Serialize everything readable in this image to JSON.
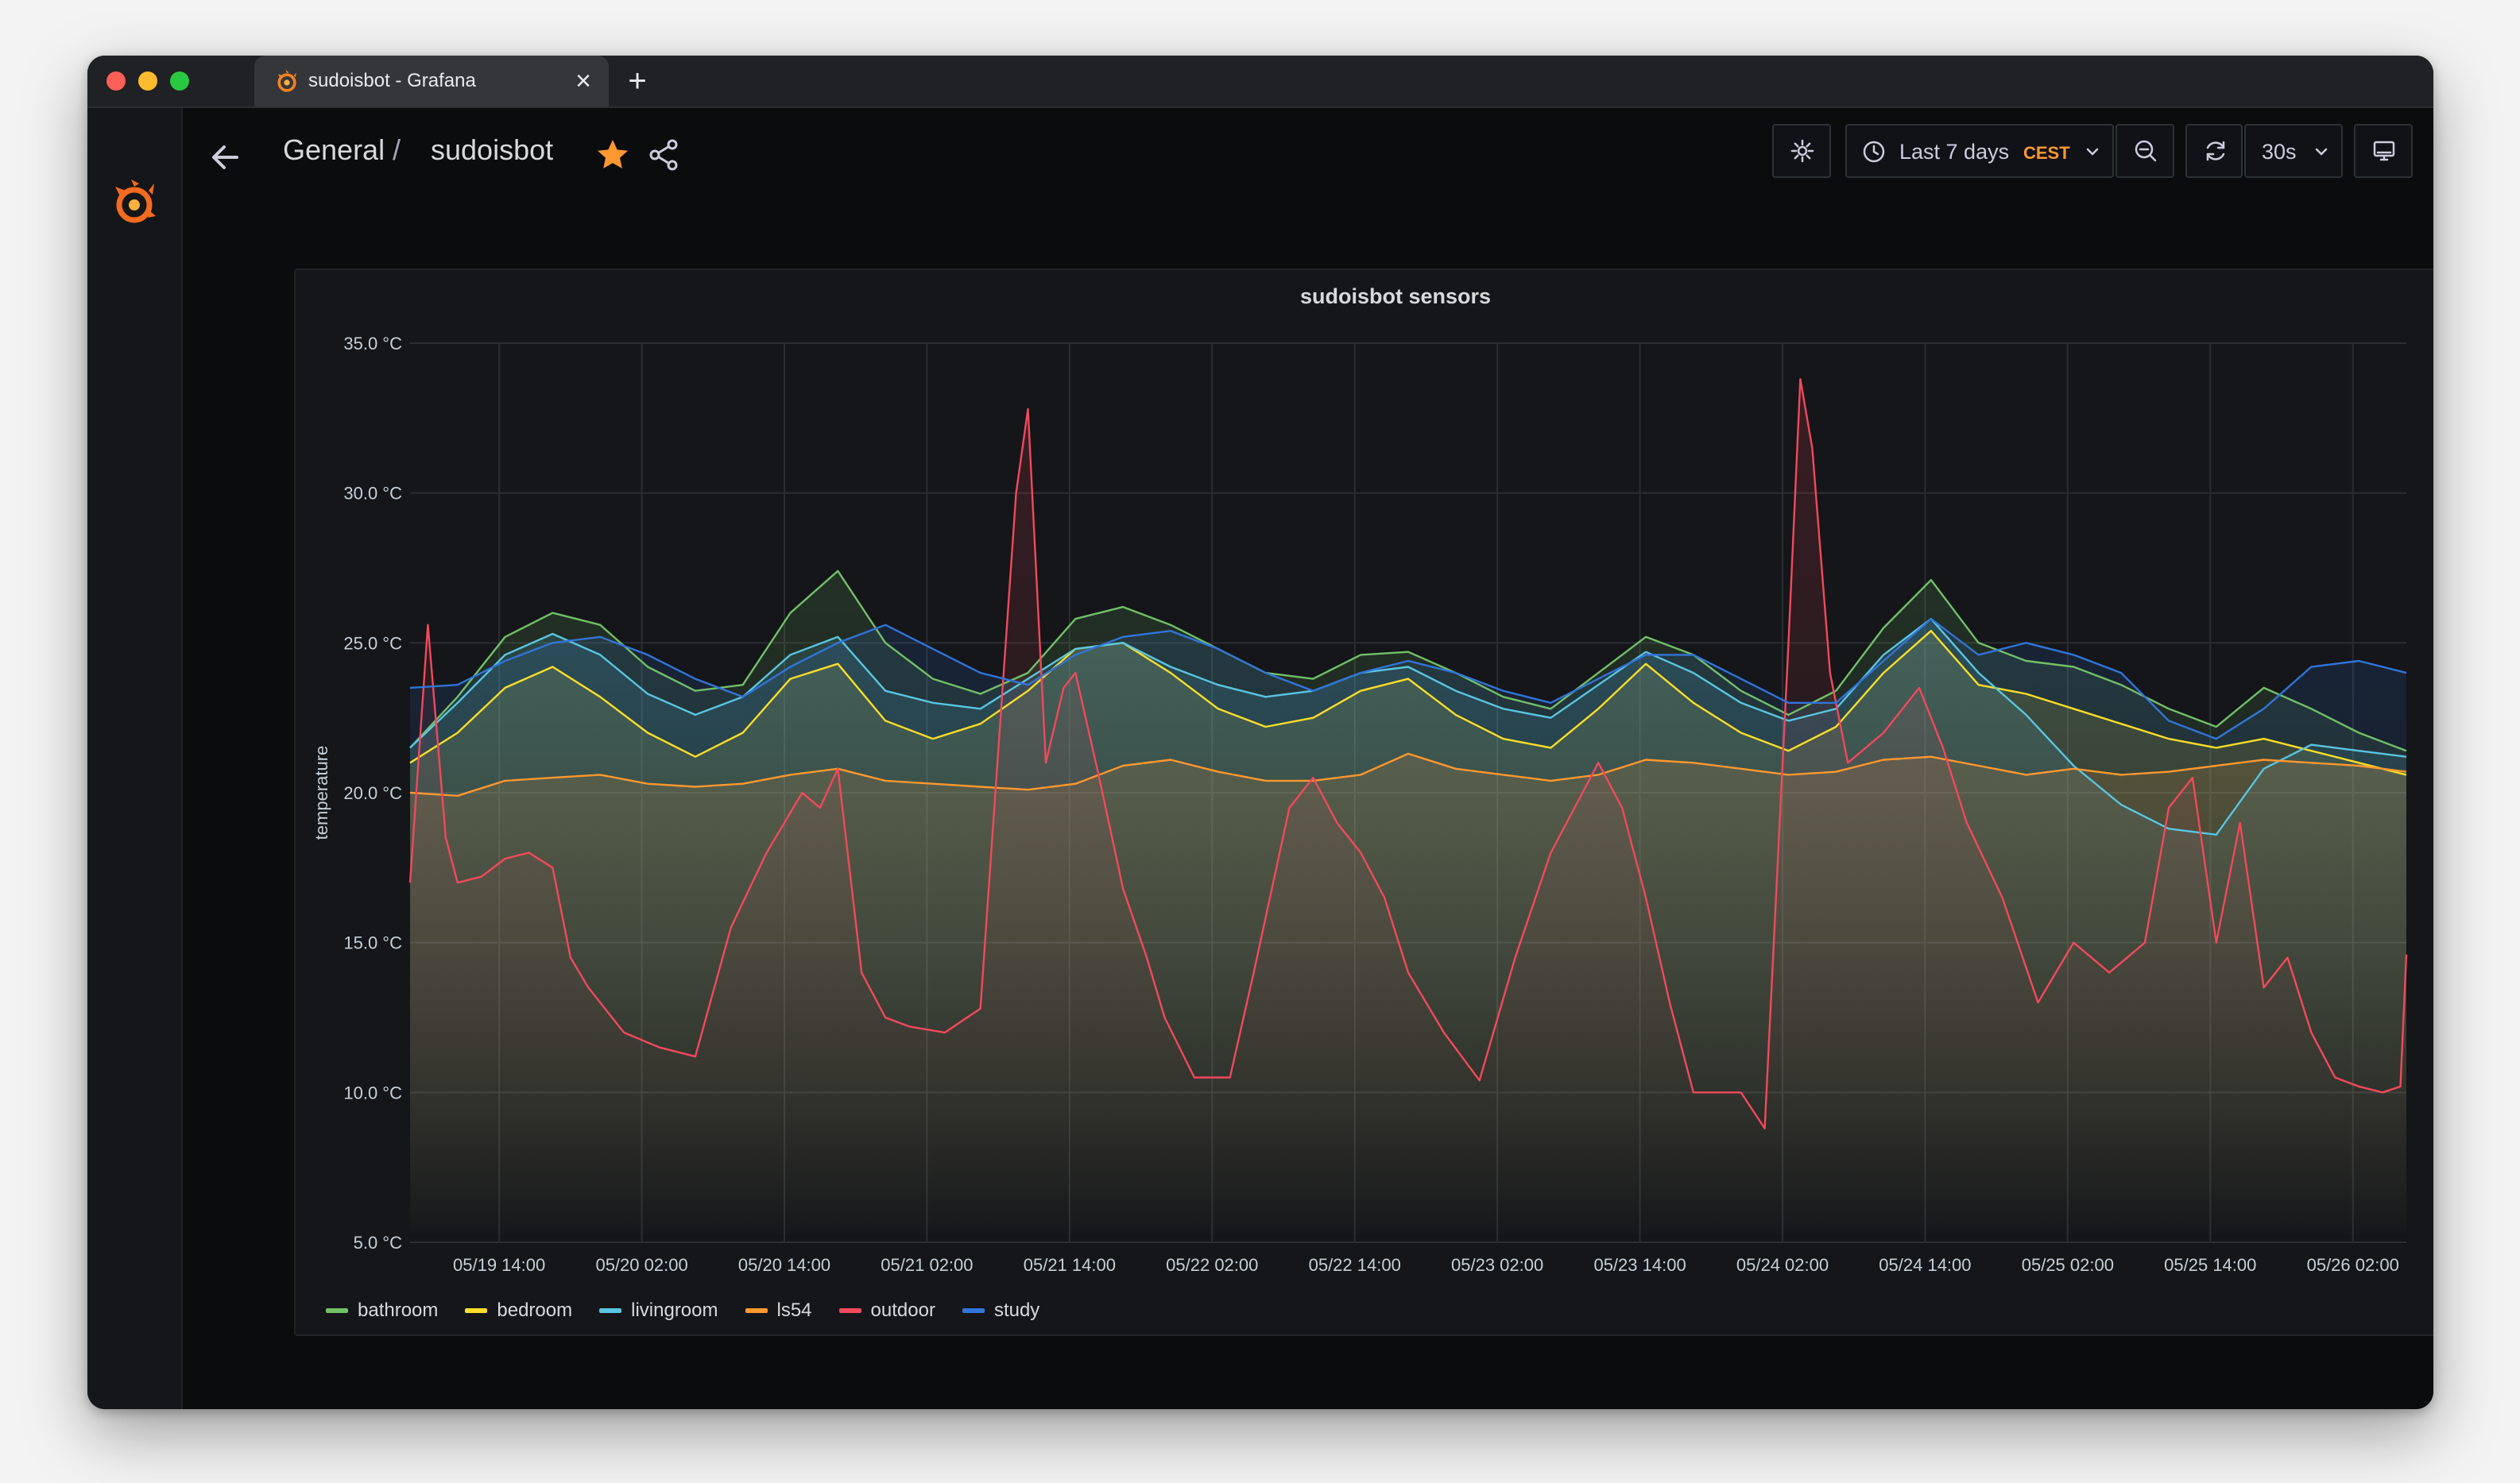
{
  "browser": {
    "tab_title": "sudoisbot - Grafana",
    "close_glyph": "×",
    "new_tab_glyph": "+"
  },
  "header": {
    "folder": "General",
    "separator": "/",
    "dashboard_title": "sudoisbot",
    "icons": [
      "arrow-left-icon",
      "star-icon",
      "share-icon"
    ]
  },
  "toolbar": {
    "time_range": "Last 7 days",
    "timezone": "CEST",
    "refresh_interval": "30s",
    "icons": [
      "cog-icon",
      "clock-icon",
      "zoom-out-icon",
      "sync-icon",
      "monitor-icon"
    ],
    "accent_color": "#ff9830"
  },
  "panel": {
    "title": "sudoisbot sensors"
  },
  "chart_data": {
    "type": "line",
    "title": "sudoisbot sensors",
    "ylabel": "temperature",
    "xlabel": "",
    "unit": "°C",
    "ylim": [
      5,
      35
    ],
    "xlim": [
      "05/19 06:30",
      "05/26 06:30"
    ],
    "grid": true,
    "legend_position": "bottom-left",
    "y_ticks": [
      "5.0 °C",
      "10.0 °C",
      "15.0 °C",
      "20.0 °C",
      "25.0 °C",
      "30.0 °C",
      "35.0 °C"
    ],
    "x_ticks": [
      {
        "label": "05/19 14:00",
        "h": 7.5
      },
      {
        "label": "05/20 02:00",
        "h": 19.5
      },
      {
        "label": "05/20 14:00",
        "h": 31.5
      },
      {
        "label": "05/21 02:00",
        "h": 43.5
      },
      {
        "label": "05/21 14:00",
        "h": 55.5
      },
      {
        "label": "05/22 02:00",
        "h": 67.5
      },
      {
        "label": "05/22 14:00",
        "h": 79.5
      },
      {
        "label": "05/23 02:00",
        "h": 91.5
      },
      {
        "label": "05/23 14:00",
        "h": 103.5
      },
      {
        "label": "05/24 02:00",
        "h": 115.5
      },
      {
        "label": "05/24 14:00",
        "h": 127.5
      },
      {
        "label": "05/25 02:00",
        "h": 139.5
      },
      {
        "label": "05/25 14:00",
        "h": 151.5
      },
      {
        "label": "05/26 02:00",
        "h": 163.5
      }
    ],
    "series": [
      {
        "name": "bathroom",
        "color": "#73bf69",
        "x": [
          0,
          4,
          8,
          12,
          16,
          20,
          24,
          28,
          32,
          36,
          40,
          44,
          48,
          52,
          56,
          60,
          64,
          68,
          72,
          76,
          80,
          84,
          88,
          92,
          96,
          100,
          104,
          108,
          112,
          116,
          120,
          124,
          128,
          132,
          136,
          140,
          144,
          148,
          152,
          156,
          160,
          164,
          168
        ],
        "y": [
          21.5,
          23.2,
          25.2,
          26.0,
          25.6,
          24.2,
          23.4,
          23.6,
          26.0,
          27.4,
          25.0,
          23.8,
          23.3,
          24.0,
          25.8,
          26.2,
          25.6,
          24.8,
          24.0,
          23.8,
          24.6,
          24.7,
          24.0,
          23.2,
          22.8,
          24.0,
          25.2,
          24.6,
          23.4,
          22.6,
          23.4,
          25.5,
          27.1,
          25.0,
          24.4,
          24.2,
          23.6,
          22.8,
          22.2,
          23.5,
          22.8,
          22.0,
          21.4
        ]
      },
      {
        "name": "bedroom",
        "color": "#fade2a",
        "x": [
          0,
          4,
          8,
          12,
          16,
          20,
          24,
          28,
          32,
          36,
          40,
          44,
          48,
          52,
          56,
          60,
          64,
          68,
          72,
          76,
          80,
          84,
          88,
          92,
          96,
          100,
          104,
          108,
          112,
          116,
          120,
          124,
          128,
          132,
          136,
          140,
          144,
          148,
          152,
          156,
          160,
          164,
          168
        ],
        "y": [
          21.0,
          22.0,
          23.5,
          24.2,
          23.2,
          22.0,
          21.2,
          22.0,
          23.8,
          24.3,
          22.4,
          21.8,
          22.3,
          23.4,
          24.8,
          25.0,
          24.0,
          22.8,
          22.2,
          22.5,
          23.4,
          23.8,
          22.6,
          21.8,
          21.5,
          22.8,
          24.3,
          23.0,
          22.0,
          21.4,
          22.2,
          24.0,
          25.4,
          23.6,
          23.3,
          22.8,
          22.3,
          21.8,
          21.5,
          21.8,
          21.4,
          21.0,
          20.6
        ]
      },
      {
        "name": "livingroom",
        "color": "#5ac5e0",
        "x": [
          0,
          4,
          8,
          12,
          16,
          20,
          24,
          28,
          32,
          36,
          40,
          44,
          48,
          52,
          56,
          60,
          64,
          68,
          72,
          76,
          80,
          84,
          88,
          92,
          96,
          100,
          104,
          108,
          112,
          116,
          120,
          124,
          128,
          132,
          136,
          140,
          144,
          148,
          152,
          156,
          160,
          164,
          168
        ],
        "y": [
          21.5,
          23.0,
          24.6,
          25.3,
          24.6,
          23.3,
          22.6,
          23.2,
          24.6,
          25.2,
          23.4,
          23.0,
          22.8,
          23.8,
          24.8,
          25.0,
          24.2,
          23.6,
          23.2,
          23.4,
          24.0,
          24.2,
          23.4,
          22.8,
          22.5,
          23.6,
          24.7,
          24.0,
          23.0,
          22.4,
          22.8,
          24.6,
          25.8,
          24.0,
          22.6,
          20.9,
          19.6,
          18.8,
          18.6,
          20.8,
          21.6,
          21.4,
          21.2
        ]
      },
      {
        "name": "ls54",
        "color": "#ff9830",
        "x": [
          0,
          4,
          8,
          12,
          16,
          20,
          24,
          28,
          32,
          36,
          40,
          44,
          48,
          52,
          56,
          60,
          64,
          68,
          72,
          76,
          80,
          84,
          88,
          92,
          96,
          100,
          104,
          108,
          112,
          116,
          120,
          124,
          128,
          132,
          136,
          140,
          144,
          148,
          152,
          156,
          160,
          164,
          168
        ],
        "y": [
          20.0,
          19.9,
          20.4,
          20.5,
          20.6,
          20.3,
          20.2,
          20.3,
          20.6,
          20.8,
          20.4,
          20.3,
          20.2,
          20.1,
          20.3,
          20.9,
          21.1,
          20.7,
          20.4,
          20.4,
          20.6,
          21.3,
          20.8,
          20.6,
          20.4,
          20.6,
          21.1,
          21.0,
          20.8,
          20.6,
          20.7,
          21.1,
          21.2,
          20.9,
          20.6,
          20.8,
          20.6,
          20.7,
          20.9,
          21.1,
          21.0,
          20.9,
          20.7
        ]
      },
      {
        "name": "outdoor",
        "color": "#f2495c",
        "x": [
          0,
          1.5,
          3,
          4,
          6,
          8,
          10,
          12,
          13.5,
          15,
          18,
          21,
          24,
          27,
          30,
          33,
          34.5,
          36,
          38,
          40,
          42,
          45,
          48,
          51,
          52,
          53.5,
          55,
          56,
          58,
          60,
          62,
          63.5,
          66,
          69,
          71,
          74,
          76,
          78,
          80,
          82,
          84,
          87,
          90,
          93,
          96,
          98,
          100,
          102,
          104,
          106,
          108,
          112,
          114,
          116,
          117,
          118,
          119.5,
          121,
          124,
          127,
          129,
          131,
          134,
          137,
          140,
          143,
          146,
          148,
          150,
          152,
          154,
          156,
          158,
          160,
          162,
          164,
          166,
          167.5,
          168
        ],
        "y": [
          17.0,
          25.6,
          18.5,
          17.0,
          17.2,
          17.8,
          18.0,
          17.5,
          14.5,
          13.5,
          12.0,
          11.5,
          11.2,
          15.5,
          18.0,
          20.0,
          19.5,
          20.8,
          14.0,
          12.5,
          12.2,
          12.0,
          12.8,
          30.0,
          32.8,
          21.0,
          23.5,
          24.0,
          20.5,
          16.8,
          14.5,
          12.5,
          10.5,
          10.5,
          14.0,
          19.5,
          20.5,
          19.0,
          18.0,
          16.5,
          14.0,
          12.0,
          10.4,
          14.5,
          18.0,
          19.5,
          21.0,
          19.5,
          16.5,
          13.0,
          10.0,
          10.0,
          8.8,
          25.0,
          33.8,
          31.5,
          24.0,
          21.0,
          22.0,
          23.5,
          21.5,
          19.0,
          16.5,
          13.0,
          15.0,
          14.0,
          15.0,
          19.5,
          20.5,
          15.0,
          19.0,
          13.5,
          14.5,
          12.0,
          10.5,
          10.2,
          10.0,
          10.2,
          14.6
        ]
      },
      {
        "name": "study",
        "color": "#3274d9",
        "x": [
          0,
          4,
          8,
          12,
          16,
          20,
          24,
          28,
          32,
          36,
          40,
          44,
          48,
          52,
          56,
          60,
          64,
          68,
          72,
          76,
          80,
          84,
          88,
          92,
          96,
          100,
          104,
          108,
          112,
          116,
          120,
          124,
          128,
          132,
          136,
          140,
          144,
          148,
          152,
          156,
          160,
          164,
          168
        ],
        "y": [
          23.5,
          23.6,
          24.4,
          25.0,
          25.2,
          24.6,
          23.8,
          23.2,
          24.2,
          25.0,
          25.6,
          24.8,
          24.0,
          23.6,
          24.6,
          25.2,
          25.4,
          24.8,
          24.0,
          23.4,
          24.0,
          24.4,
          24.0,
          23.4,
          23.0,
          23.8,
          24.6,
          24.6,
          23.8,
          23.0,
          23.0,
          24.4,
          25.8,
          24.6,
          25.0,
          24.6,
          24.0,
          22.4,
          21.8,
          22.8,
          24.2,
          24.4,
          24.0
        ]
      }
    ]
  }
}
